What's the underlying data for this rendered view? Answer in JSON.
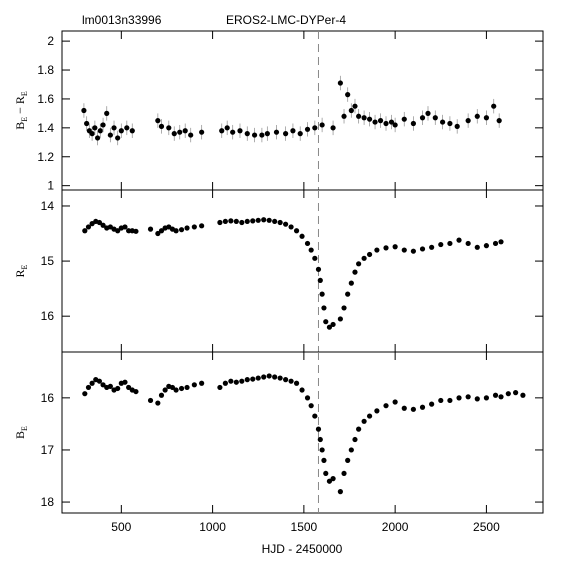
{
  "chart_data": [
    {
      "type": "scatter",
      "object_id": "lm0013n33996",
      "title": "EROS2-LMC-DYPer-4",
      "ylabel": [
        {
          "text": "B"
        },
        {
          "sub": "E"
        },
        {
          "text": " − R"
        },
        {
          "sub": "E"
        }
      ],
      "xlim": [
        175,
        2810
      ],
      "xticks": [
        500,
        1000,
        1500,
        2000,
        2500
      ],
      "ylim": [
        0.97,
        2.07
      ],
      "yticks": [
        1,
        1.2,
        1.4,
        1.6,
        1.8,
        2
      ],
      "marker_x": 1580,
      "color": "#000000",
      "error": 0.05,
      "x": [
        295,
        310,
        325,
        340,
        355,
        370,
        385,
        400,
        420,
        440,
        460,
        480,
        500,
        530,
        560,
        700,
        720,
        760,
        790,
        820,
        850,
        880,
        940,
        1050,
        1080,
        1110,
        1150,
        1190,
        1230,
        1270,
        1300,
        1350,
        1400,
        1440,
        1480,
        1520,
        1560,
        1600,
        1660,
        1700,
        1720,
        1740,
        1760,
        1780,
        1800,
        1830,
        1860,
        1890,
        1920,
        1950,
        1980,
        2000,
        2050,
        2100,
        2150,
        2180,
        2220,
        2260,
        2300,
        2340,
        2400,
        2450,
        2500,
        2540,
        2570
      ],
      "values": [
        1.52,
        1.43,
        1.38,
        1.36,
        1.4,
        1.33,
        1.38,
        1.42,
        1.5,
        1.35,
        1.4,
        1.33,
        1.38,
        1.4,
        1.38,
        1.45,
        1.41,
        1.4,
        1.36,
        1.37,
        1.38,
        1.35,
        1.37,
        1.38,
        1.4,
        1.37,
        1.38,
        1.36,
        1.35,
        1.35,
        1.36,
        1.37,
        1.36,
        1.38,
        1.36,
        1.39,
        1.4,
        1.42,
        1.4,
        1.71,
        1.48,
        1.63,
        1.52,
        1.55,
        1.48,
        1.47,
        1.46,
        1.44,
        1.45,
        1.43,
        1.44,
        1.42,
        1.46,
        1.43,
        1.47,
        1.5,
        1.47,
        1.44,
        1.43,
        1.41,
        1.45,
        1.48,
        1.47,
        1.55,
        1.45
      ]
    },
    {
      "type": "scatter",
      "ylabel": [
        {
          "text": "R"
        },
        {
          "sub": "E"
        }
      ],
      "xlim": [
        175,
        2810
      ],
      "xticks": [
        500,
        1000,
        1500,
        2000,
        2500
      ],
      "ylim": [
        16.65,
        13.71
      ],
      "yticks": [
        14,
        15,
        16
      ],
      "marker_x": 1580,
      "color": "#000000",
      "x": [
        300,
        320,
        340,
        360,
        380,
        400,
        420,
        440,
        460,
        480,
        500,
        520,
        540,
        560,
        580,
        660,
        700,
        720,
        740,
        760,
        780,
        800,
        830,
        860,
        900,
        940,
        1040,
        1070,
        1100,
        1130,
        1160,
        1190,
        1220,
        1250,
        1280,
        1310,
        1340,
        1370,
        1400,
        1430,
        1460,
        1490,
        1520,
        1540,
        1560,
        1580,
        1590,
        1600,
        1610,
        1620,
        1640,
        1660,
        1700,
        1720,
        1740,
        1760,
        1780,
        1800,
        1830,
        1860,
        1900,
        1950,
        2000,
        2050,
        2100,
        2150,
        2200,
        2250,
        2300,
        2350,
        2400,
        2450,
        2500,
        2550,
        2580
      ],
      "values": [
        14.45,
        14.38,
        14.32,
        14.28,
        14.3,
        14.35,
        14.4,
        14.38,
        14.42,
        14.45,
        14.4,
        14.38,
        14.45,
        14.45,
        14.46,
        14.42,
        14.5,
        14.45,
        14.4,
        14.38,
        14.42,
        14.45,
        14.43,
        14.4,
        14.38,
        14.36,
        14.3,
        14.28,
        14.27,
        14.28,
        14.3,
        14.28,
        14.27,
        14.26,
        14.25,
        14.26,
        14.28,
        14.3,
        14.33,
        14.38,
        14.45,
        14.55,
        14.68,
        14.8,
        14.95,
        15.15,
        15.35,
        15.6,
        15.85,
        16.1,
        16.2,
        16.15,
        16.05,
        15.85,
        15.6,
        15.4,
        15.2,
        15.05,
        14.95,
        14.88,
        14.8,
        14.76,
        14.74,
        14.8,
        14.82,
        14.78,
        14.75,
        14.7,
        14.68,
        14.62,
        14.68,
        14.75,
        14.72,
        14.68,
        14.65
      ]
    },
    {
      "type": "scatter",
      "ylabel": [
        {
          "text": "B"
        },
        {
          "sub": "E"
        }
      ],
      "xlabel": "HJD - 2450000",
      "xlim": [
        175,
        2810
      ],
      "xticks": [
        500,
        1000,
        1500,
        2000,
        2500
      ],
      "ylim": [
        18.21,
        15.12
      ],
      "yticks": [
        16,
        17,
        18
      ],
      "marker_x": 1580,
      "color": "#000000",
      "x": [
        300,
        320,
        340,
        360,
        380,
        400,
        420,
        440,
        460,
        480,
        500,
        520,
        540,
        560,
        580,
        660,
        700,
        720,
        740,
        760,
        780,
        800,
        830,
        860,
        900,
        940,
        1040,
        1070,
        1100,
        1130,
        1160,
        1190,
        1220,
        1250,
        1280,
        1310,
        1340,
        1370,
        1400,
        1430,
        1460,
        1490,
        1520,
        1540,
        1560,
        1580,
        1590,
        1600,
        1610,
        1620,
        1640,
        1660,
        1700,
        1720,
        1740,
        1760,
        1780,
        1800,
        1830,
        1860,
        1900,
        1950,
        2000,
        2050,
        2100,
        2150,
        2200,
        2250,
        2300,
        2350,
        2400,
        2450,
        2500,
        2550,
        2580,
        2620,
        2660,
        2700
      ],
      "values": [
        15.92,
        15.8,
        15.72,
        15.65,
        15.68,
        15.75,
        15.8,
        15.78,
        15.85,
        15.82,
        15.72,
        15.7,
        15.8,
        15.85,
        15.88,
        16.05,
        16.1,
        15.95,
        15.85,
        15.78,
        15.8,
        15.85,
        15.82,
        15.8,
        15.75,
        15.72,
        15.8,
        15.72,
        15.68,
        15.7,
        15.68,
        15.65,
        15.64,
        15.62,
        15.6,
        15.58,
        15.6,
        15.62,
        15.65,
        15.68,
        15.72,
        15.85,
        16.0,
        16.15,
        16.35,
        16.6,
        16.8,
        17.0,
        17.2,
        17.45,
        17.6,
        17.55,
        17.8,
        17.45,
        17.2,
        17.0,
        16.8,
        16.6,
        16.45,
        16.35,
        16.25,
        16.15,
        16.08,
        16.2,
        16.22,
        16.18,
        16.12,
        16.05,
        16.05,
        16.0,
        15.98,
        16.02,
        16.0,
        15.95,
        15.98,
        15.92,
        15.9,
        15.95
      ]
    }
  ]
}
